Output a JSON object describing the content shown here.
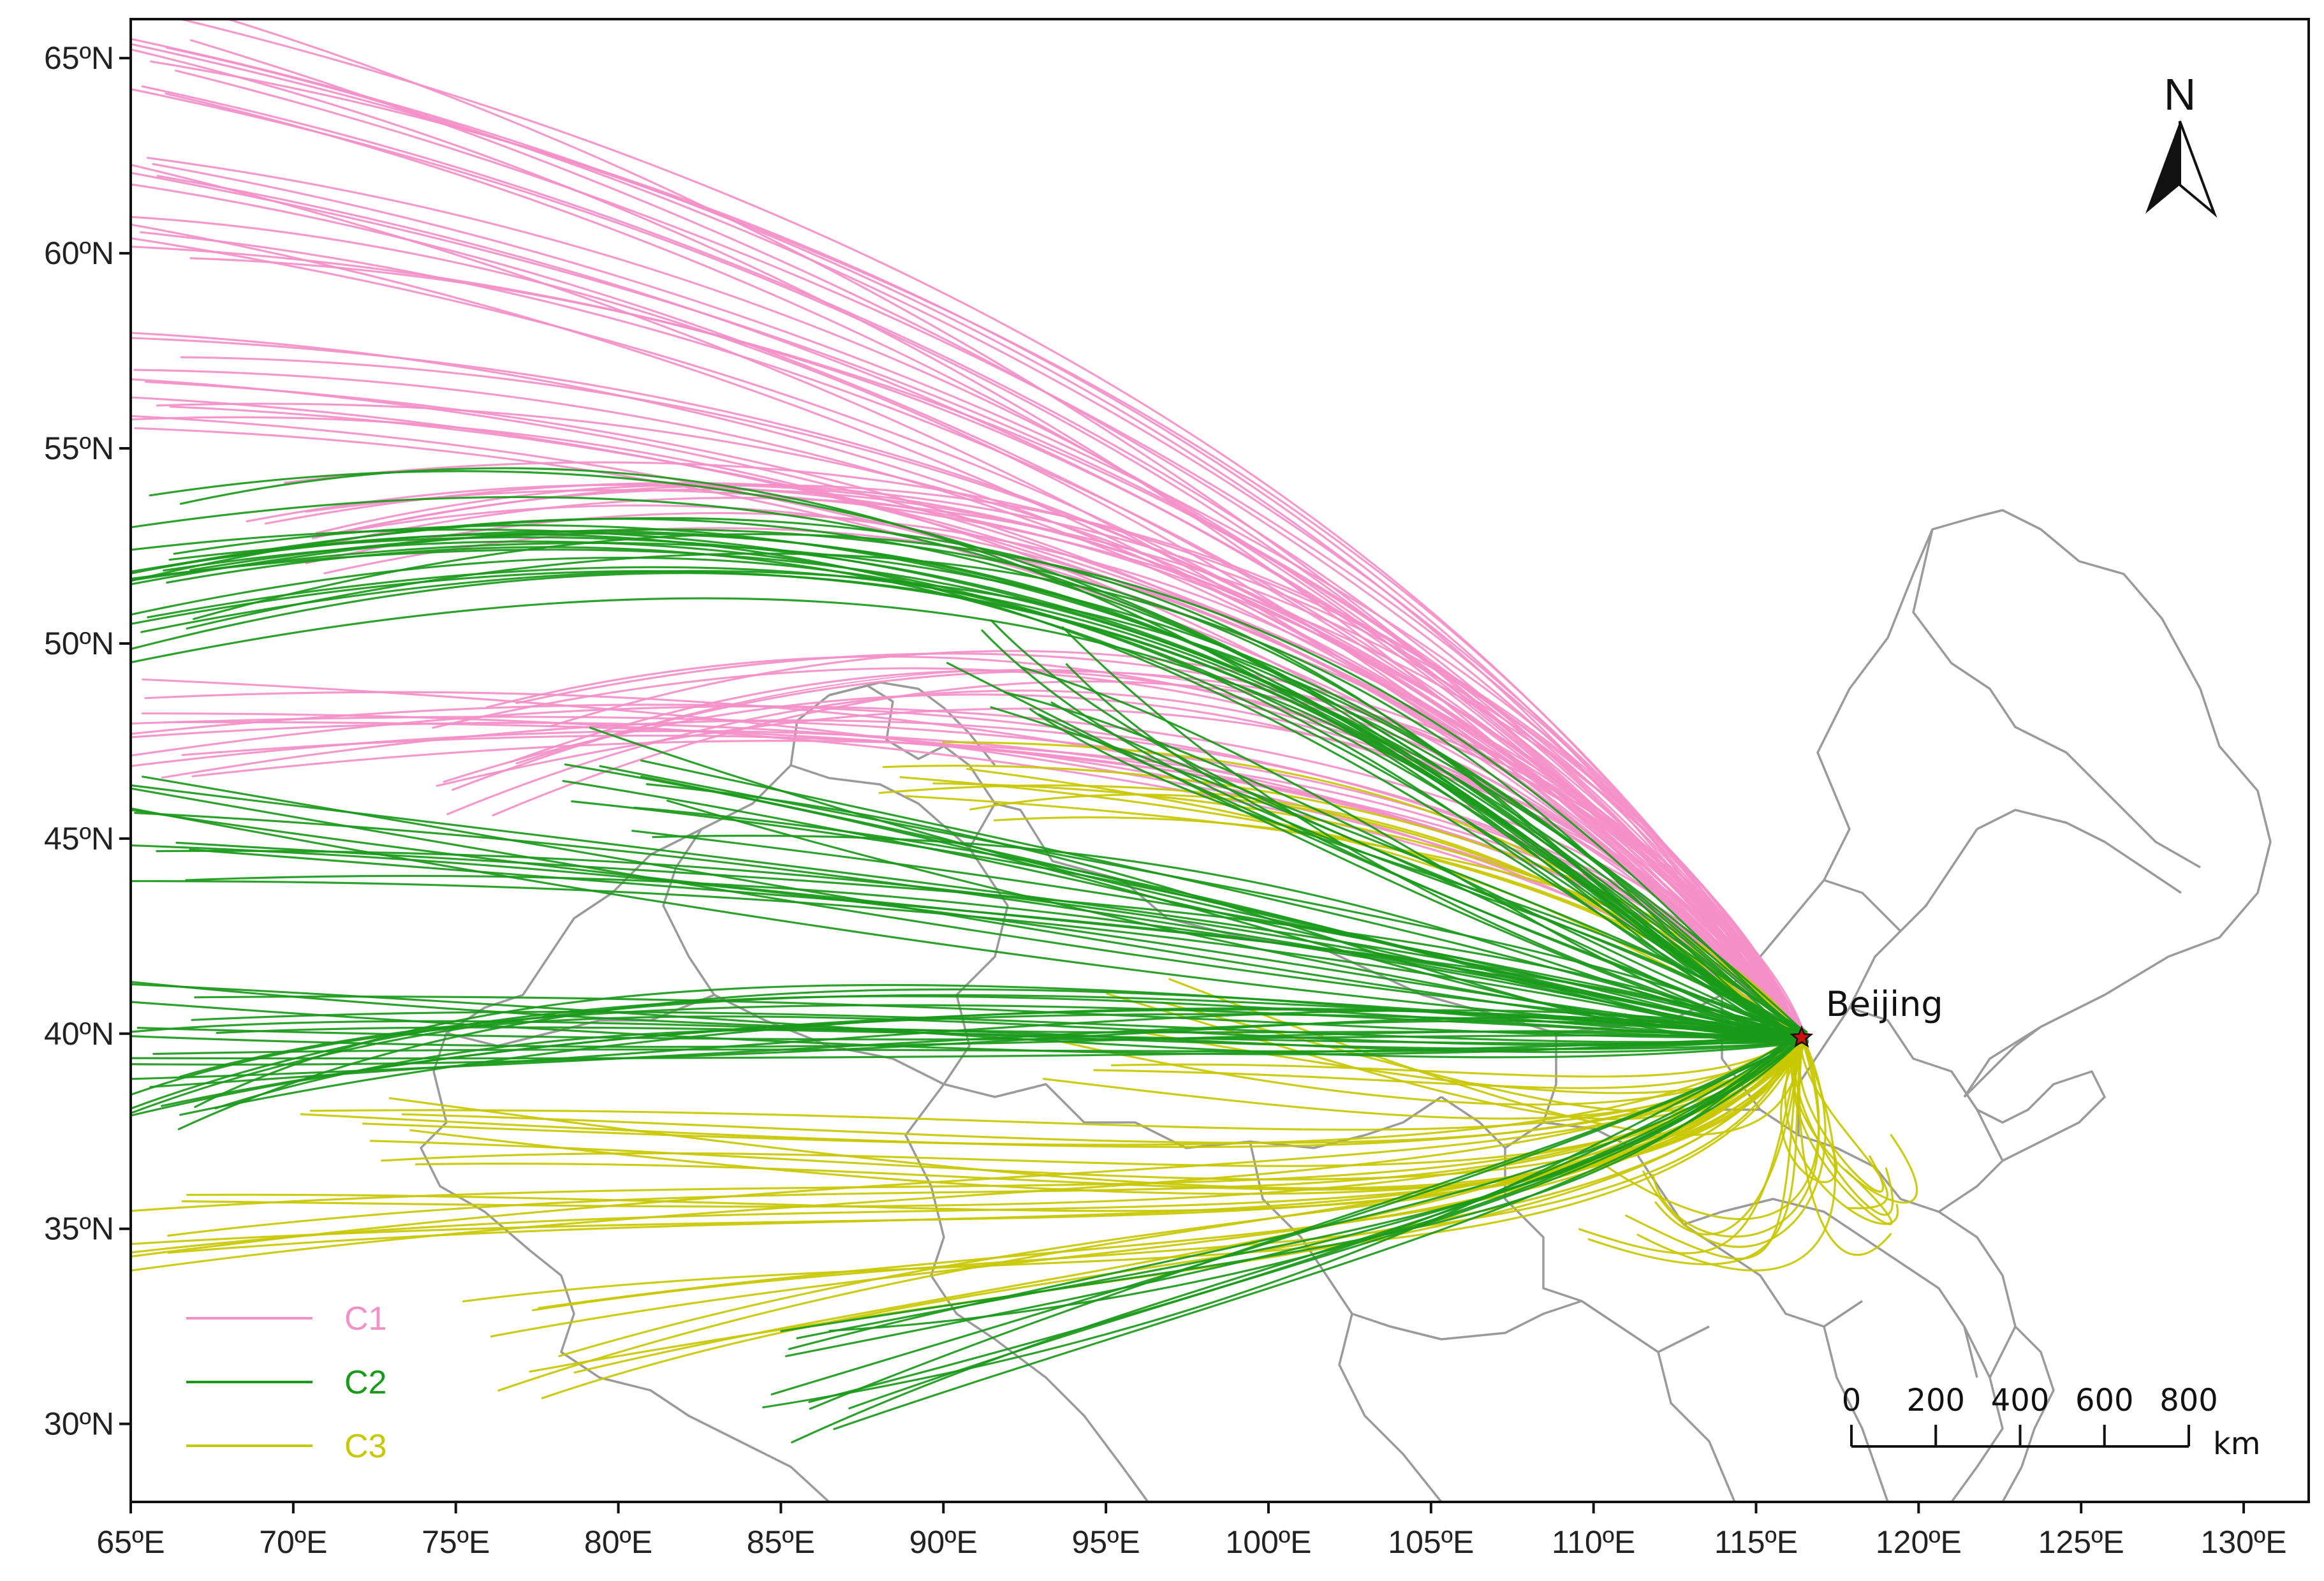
{
  "map": {
    "type": "trajectory-map",
    "lon_range": [
      65,
      132
    ],
    "lat_range": [
      28,
      66
    ],
    "x_ticks": [
      {
        "value": 65,
        "label": "65ºE"
      },
      {
        "value": 70,
        "label": "70ºE"
      },
      {
        "value": 75,
        "label": "75ºE"
      },
      {
        "value": 80,
        "label": "80ºE"
      },
      {
        "value": 85,
        "label": "85ºE"
      },
      {
        "value": 90,
        "label": "90ºE"
      },
      {
        "value": 95,
        "label": "95ºE"
      },
      {
        "value": 100,
        "label": "100ºE"
      },
      {
        "value": 105,
        "label": "105ºE"
      },
      {
        "value": 110,
        "label": "110ºE"
      },
      {
        "value": 115,
        "label": "115ºE"
      },
      {
        "value": 120,
        "label": "120ºE"
      },
      {
        "value": 125,
        "label": "125ºE"
      },
      {
        "value": 130,
        "label": "130ºE"
      }
    ],
    "y_ticks": [
      {
        "value": 30,
        "label": "30ºN"
      },
      {
        "value": 35,
        "label": "35ºN"
      },
      {
        "value": 40,
        "label": "40ºN"
      },
      {
        "value": 45,
        "label": "45ºN"
      },
      {
        "value": 50,
        "label": "50ºN"
      },
      {
        "value": 55,
        "label": "55ºN"
      },
      {
        "value": 60,
        "label": "60ºN"
      },
      {
        "value": 65,
        "label": "65ºN"
      }
    ],
    "city": {
      "name": "Beijing",
      "lon": 116.4,
      "lat": 39.9,
      "marker": "star",
      "marker_color": "#cc1111"
    },
    "north_arrow": {
      "label": "N"
    },
    "scale_bar": {
      "ticks": [
        "0",
        "200",
        "400",
        "600",
        "800"
      ],
      "unit": "km"
    },
    "legend": [
      {
        "key": "C1",
        "label": "C1",
        "color": "#f48fc8"
      },
      {
        "key": "C2",
        "label": "C2",
        "color": "#1a9a1a"
      },
      {
        "key": "C3",
        "label": "C3",
        "color": "#c8c800"
      }
    ],
    "clusters": [
      {
        "key": "C1",
        "color": "#f48fc8",
        "count": 70,
        "anchors": [
          [
            [
              65,
              65.5
            ],
            [
              90,
              60
            ],
            [
              108,
              50
            ]
          ],
          [
            [
              65,
              61
            ],
            [
              92,
              58.5
            ],
            [
              110,
              48
            ]
          ],
          [
            [
              65,
              57
            ],
            [
              95,
              56
            ],
            [
              112,
              46
            ]
          ],
          [
            [
              65,
              48
            ],
            [
              95,
              49.5
            ],
            [
              112,
              45
            ]
          ],
          [
            [
              76,
              47
            ],
            [
              100,
              53
            ],
            [
              113,
              43.5
            ]
          ],
          [
            [
              70,
              53
            ],
            [
              100,
              58
            ],
            [
              114,
              43
            ]
          ]
        ]
      },
      {
        "key": "C2",
        "color": "#1a9a1a",
        "count": 95,
        "anchors": [
          [
            [
              65,
              52.5
            ],
            [
              95,
              56.8
            ],
            [
              107,
              45
            ]
          ],
          [
            [
              65,
              51
            ],
            [
              100,
              56.5
            ],
            [
              108,
              44
            ]
          ],
          [
            [
              65,
              45.2
            ],
            [
              90,
              43.5
            ],
            [
              105,
              42
            ]
          ],
          [
            [
              65,
              40
            ],
            [
              90,
              40.5
            ],
            [
              105,
              40
            ]
          ],
          [
            [
              80,
              46.5
            ],
            [
              98,
              44
            ],
            [
              108,
              41
            ]
          ],
          [
            [
              86,
              31
            ],
            [
              100,
              34
            ],
            [
              110,
              36
            ]
          ],
          [
            [
              66,
              39
            ],
            [
              80,
              42
            ],
            [
              100,
              40
            ]
          ],
          [
            [
              92,
              49.5
            ],
            [
              100,
              46
            ],
            [
              110,
              42
            ]
          ]
        ]
      },
      {
        "key": "C3",
        "color": "#c8c800",
        "count": 60,
        "anchors": [
          [
            [
              65,
              35
            ],
            [
              90,
              36.5
            ],
            [
              110,
              34.5
            ]
          ],
          [
            [
              72,
              37.5
            ],
            [
              95,
              37
            ],
            [
              112,
              35
            ]
          ],
          [
            [
              77,
              32
            ],
            [
              95,
              35.5
            ],
            [
              112,
              34
            ]
          ],
          [
            [
              90,
              46
            ],
            [
              105,
              46.5
            ],
            [
              113,
              42
            ]
          ],
          [
            [
              95,
              40
            ],
            [
              108,
              38.5
            ],
            [
              114,
              37
            ]
          ],
          [
            [
              110,
              36
            ],
            [
              115,
              33
            ],
            [
              117,
              35
            ]
          ],
          [
            [
              119,
              36
            ],
            [
              120,
              34
            ],
            [
              116,
              38
            ]
          ]
        ]
      }
    ]
  }
}
